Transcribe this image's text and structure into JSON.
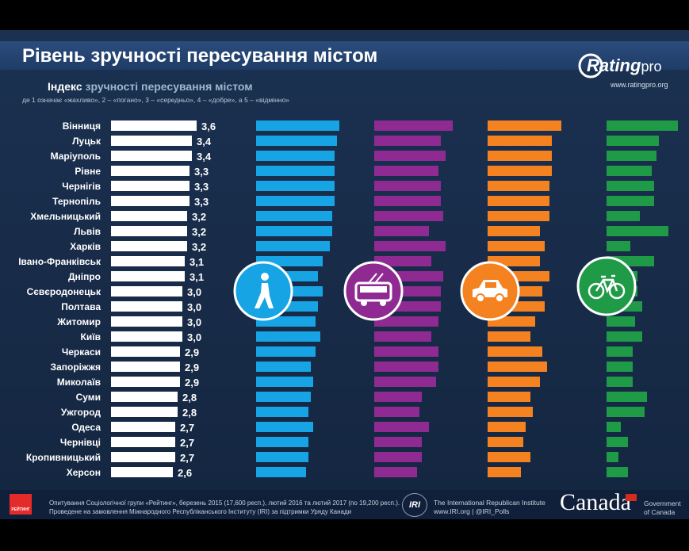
{
  "header": {
    "title": "Рівень зручності пересування містом",
    "logo_main": "Rating",
    "logo_suffix": "pro",
    "logo_url": "www.ratingpro.org"
  },
  "subtitle": {
    "part1": "Індекс ",
    "part2": "зручності пересування містом",
    "note": "де 1 означає «жахливо», 2 – «погано», 3 – «середньо», 4 – «добре», а 5 – «відмінно»"
  },
  "chart_data": {
    "type": "bar",
    "orientation": "horizontal",
    "categories": [
      "Вінниця",
      "Луцьк",
      "Маріуполь",
      "Рівне",
      "Чернігів",
      "Тернопіль",
      "Хмельницький",
      "Львів",
      "Харків",
      "Івано-Франківськ",
      "Дніпро",
      "Сєвєродонецьк",
      "Полтава",
      "Житомир",
      "Київ",
      "Черкаси",
      "Запоріжжя",
      "Миколаїв",
      "Суми",
      "Ужгород",
      "Одеса",
      "Чернівці",
      "Кропивницький",
      "Херсон"
    ],
    "series": [
      {
        "values": [
          3.6,
          3.4,
          3.4,
          3.3,
          3.3,
          3.3,
          3.2,
          3.2,
          3.2,
          3.1,
          3.1,
          3.0,
          3.0,
          3.0,
          3.0,
          2.9,
          2.9,
          2.9,
          2.8,
          2.8,
          2.7,
          2.7,
          2.7,
          2.6
        ],
        "value_labels": [
          "3,6",
          "3,4",
          "3,4",
          "3,3",
          "3,3",
          "3,3",
          "3,2",
          "3,2",
          "3,2",
          "3,1",
          "3,1",
          "3,0",
          "3,0",
          "3,0",
          "3,0",
          "2,9",
          "2,9",
          "2,9",
          "2,8",
          "2,8",
          "2,7",
          "2,7",
          "2,7",
          "2,6"
        ],
        "color": "#ffffff"
      },
      {
        "values": [
          3.5,
          3.4,
          3.3,
          3.3,
          3.3,
          3.3,
          3.2,
          3.2,
          3.1,
          2.8,
          2.6,
          2.8,
          2.6,
          2.5,
          2.7,
          2.5,
          2.3,
          2.4,
          2.3,
          2.2,
          2.4,
          2.2,
          2.2,
          2.1
        ],
        "color": "#16a4e5",
        "icon": "pedestrian-icon"
      },
      {
        "values": [
          3.3,
          2.8,
          3.0,
          2.7,
          2.8,
          2.8,
          2.9,
          2.3,
          3.0,
          2.4,
          2.9,
          2.8,
          2.8,
          2.7,
          2.4,
          2.7,
          2.7,
          2.6,
          2.0,
          1.9,
          2.3,
          2.0,
          2.0,
          1.8
        ],
        "color": "#8f2a93",
        "icon": "trolleybus-icon"
      },
      {
        "values": [
          3.1,
          2.7,
          2.7,
          2.7,
          2.6,
          2.6,
          2.6,
          2.2,
          2.4,
          2.2,
          2.6,
          2.3,
          2.4,
          2.0,
          1.8,
          2.3,
          2.5,
          2.2,
          1.8,
          1.9,
          1.6,
          1.5,
          1.8,
          1.4
        ],
        "color": "#f58220",
        "icon": "car-icon"
      },
      {
        "values": [
          3.0,
          2.2,
          2.1,
          1.9,
          2.0,
          2.0,
          1.4,
          2.6,
          1.0,
          2.0,
          1.3,
          1.3,
          1.5,
          1.2,
          1.5,
          1.1,
          1.1,
          1.1,
          1.7,
          1.6,
          0.6,
          0.9,
          0.5,
          0.9
        ],
        "color": "#1f9a46",
        "icon": "bicycle-icon"
      }
    ]
  },
  "footer": {
    "logo_label": "РЕЙТИНГ",
    "note_line1": "Опитування Соціологічної групи «Рейтинг», березень 2015 (17,600 респ.), лютий 2016 та лютий 2017 (по 19,200 респ.).",
    "note_line2": "Проведене на замовлення Міжнародного Республіканського Інституту (IRI) за підтримки Уряду Канади",
    "iri_logo": "IRI",
    "iri_name": "The International Republican Institute",
    "iri_url": "www.IRI.org | @IRI_Polls",
    "canada_word": "Canada",
    "gov_line1": "Government",
    "gov_line2": "of Canada"
  }
}
